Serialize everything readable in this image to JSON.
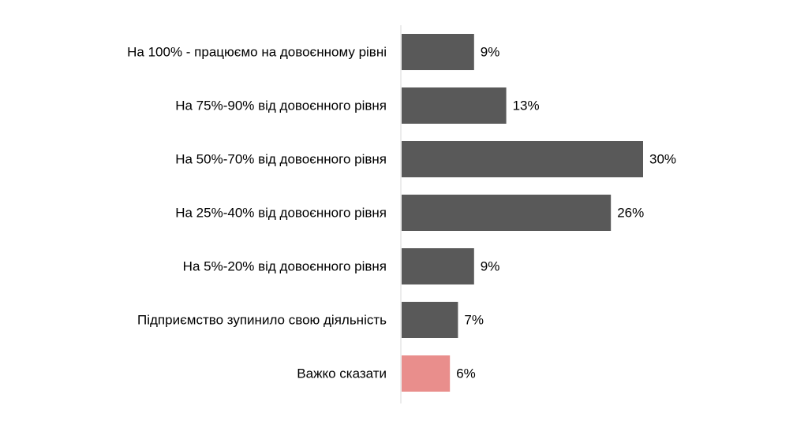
{
  "chart_data": {
    "type": "bar",
    "orientation": "horizontal",
    "categories": [
      "На 100% - працюємо на довоєнному рівні",
      "На 75%-90% від довоєнного рівня",
      "На 50%-70% від довоєнного рівня",
      "На 25%-40% від довоєнного рівня",
      "На 5%-20% від довоєнного рівня",
      "Підприємство зупинило свою діяльність",
      "Важко сказати"
    ],
    "values": [
      9,
      13,
      30,
      26,
      9,
      7,
      6
    ],
    "value_labels": [
      "9%",
      "13%",
      "30%",
      "26%",
      "9%",
      "7%",
      "6%"
    ],
    "bar_colors": [
      "#595959",
      "#595959",
      "#595959",
      "#595959",
      "#595959",
      "#595959",
      "#e98e8c"
    ],
    "xlim": [
      0,
      50
    ],
    "grid": false,
    "legend": "none",
    "axis_color": "#d9d9d9",
    "text_color": "#000000"
  }
}
